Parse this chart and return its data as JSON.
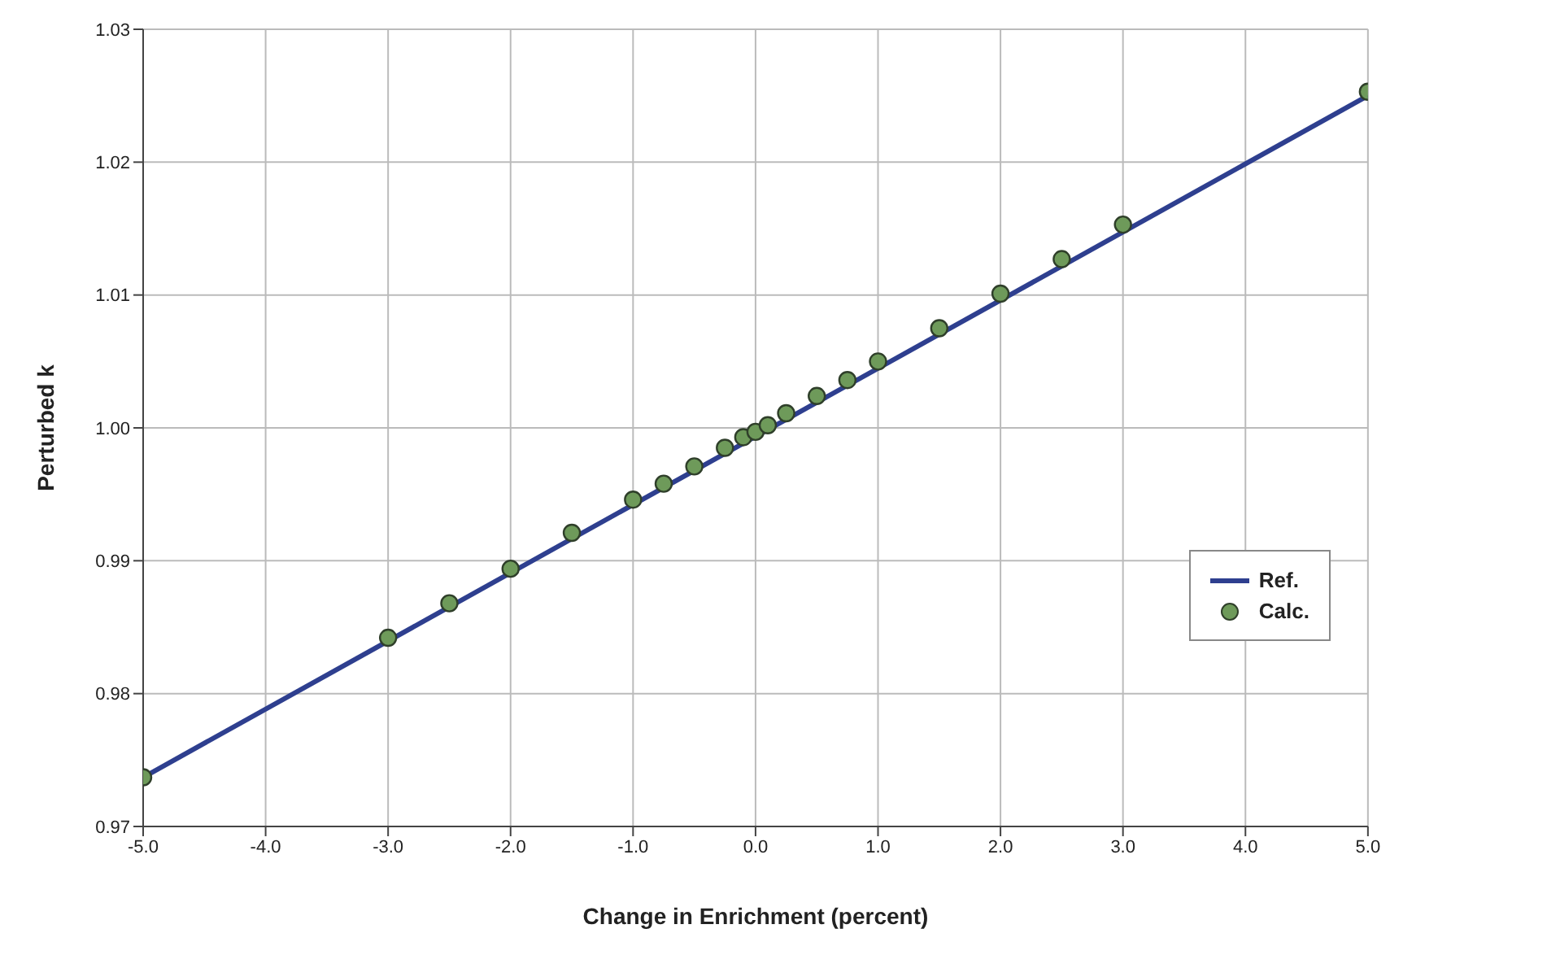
{
  "chart_data": {
    "type": "line",
    "xlabel": "Change in Enrichment (percent)",
    "ylabel": "Perturbed k",
    "xlim": [
      -5,
      5
    ],
    "ylim": [
      0.97,
      1.03
    ],
    "xticks": [
      {
        "value": -5,
        "label": "-5.0"
      },
      {
        "value": -4,
        "label": "-4.0"
      },
      {
        "value": -3,
        "label": "-3.0"
      },
      {
        "value": -2,
        "label": "-2.0"
      },
      {
        "value": -1,
        "label": "-1.0"
      },
      {
        "value": 0,
        "label": "0.0"
      },
      {
        "value": 1,
        "label": "1.0"
      },
      {
        "value": 2,
        "label": "2.0"
      },
      {
        "value": 3,
        "label": "3.0"
      },
      {
        "value": 4,
        "label": "4.0"
      },
      {
        "value": 5,
        "label": "5.0"
      }
    ],
    "yticks": [
      0.97,
      0.98,
      0.99,
      {
        "value": 1,
        "label": "1.00"
      },
      1.01,
      1.02,
      1.03
    ],
    "grid": true,
    "legend": "right",
    "series": [
      {
        "name": "Ref.",
        "color": "#2e3f8f",
        "line_style": "solid",
        "marker": "none",
        "x": [
          -5,
          5
        ],
        "values": [
          0.9737,
          1.025
        ]
      },
      {
        "name": "Calc.",
        "type": "scatter",
        "color": "#6e9a5a",
        "marker": "circle",
        "x": [
          -5,
          -3,
          -2.5,
          -2,
          -1.5,
          -1,
          -0.75,
          -0.5,
          -0.25,
          -0.1,
          0,
          0.1,
          0.25,
          0.5,
          0.75,
          1,
          1.5,
          2,
          2.5,
          3,
          5
        ],
        "values": [
          0.9737,
          0.9842,
          0.9868,
          0.9894,
          0.9921,
          0.9946,
          0.9958,
          0.9971,
          0.9985,
          0.9993,
          0.9997,
          1.0002,
          1.0011,
          1.0024,
          1.0036,
          1.005,
          1.0075,
          1.0101,
          1.0127,
          1.0153,
          1.0253
        ]
      }
    ]
  }
}
